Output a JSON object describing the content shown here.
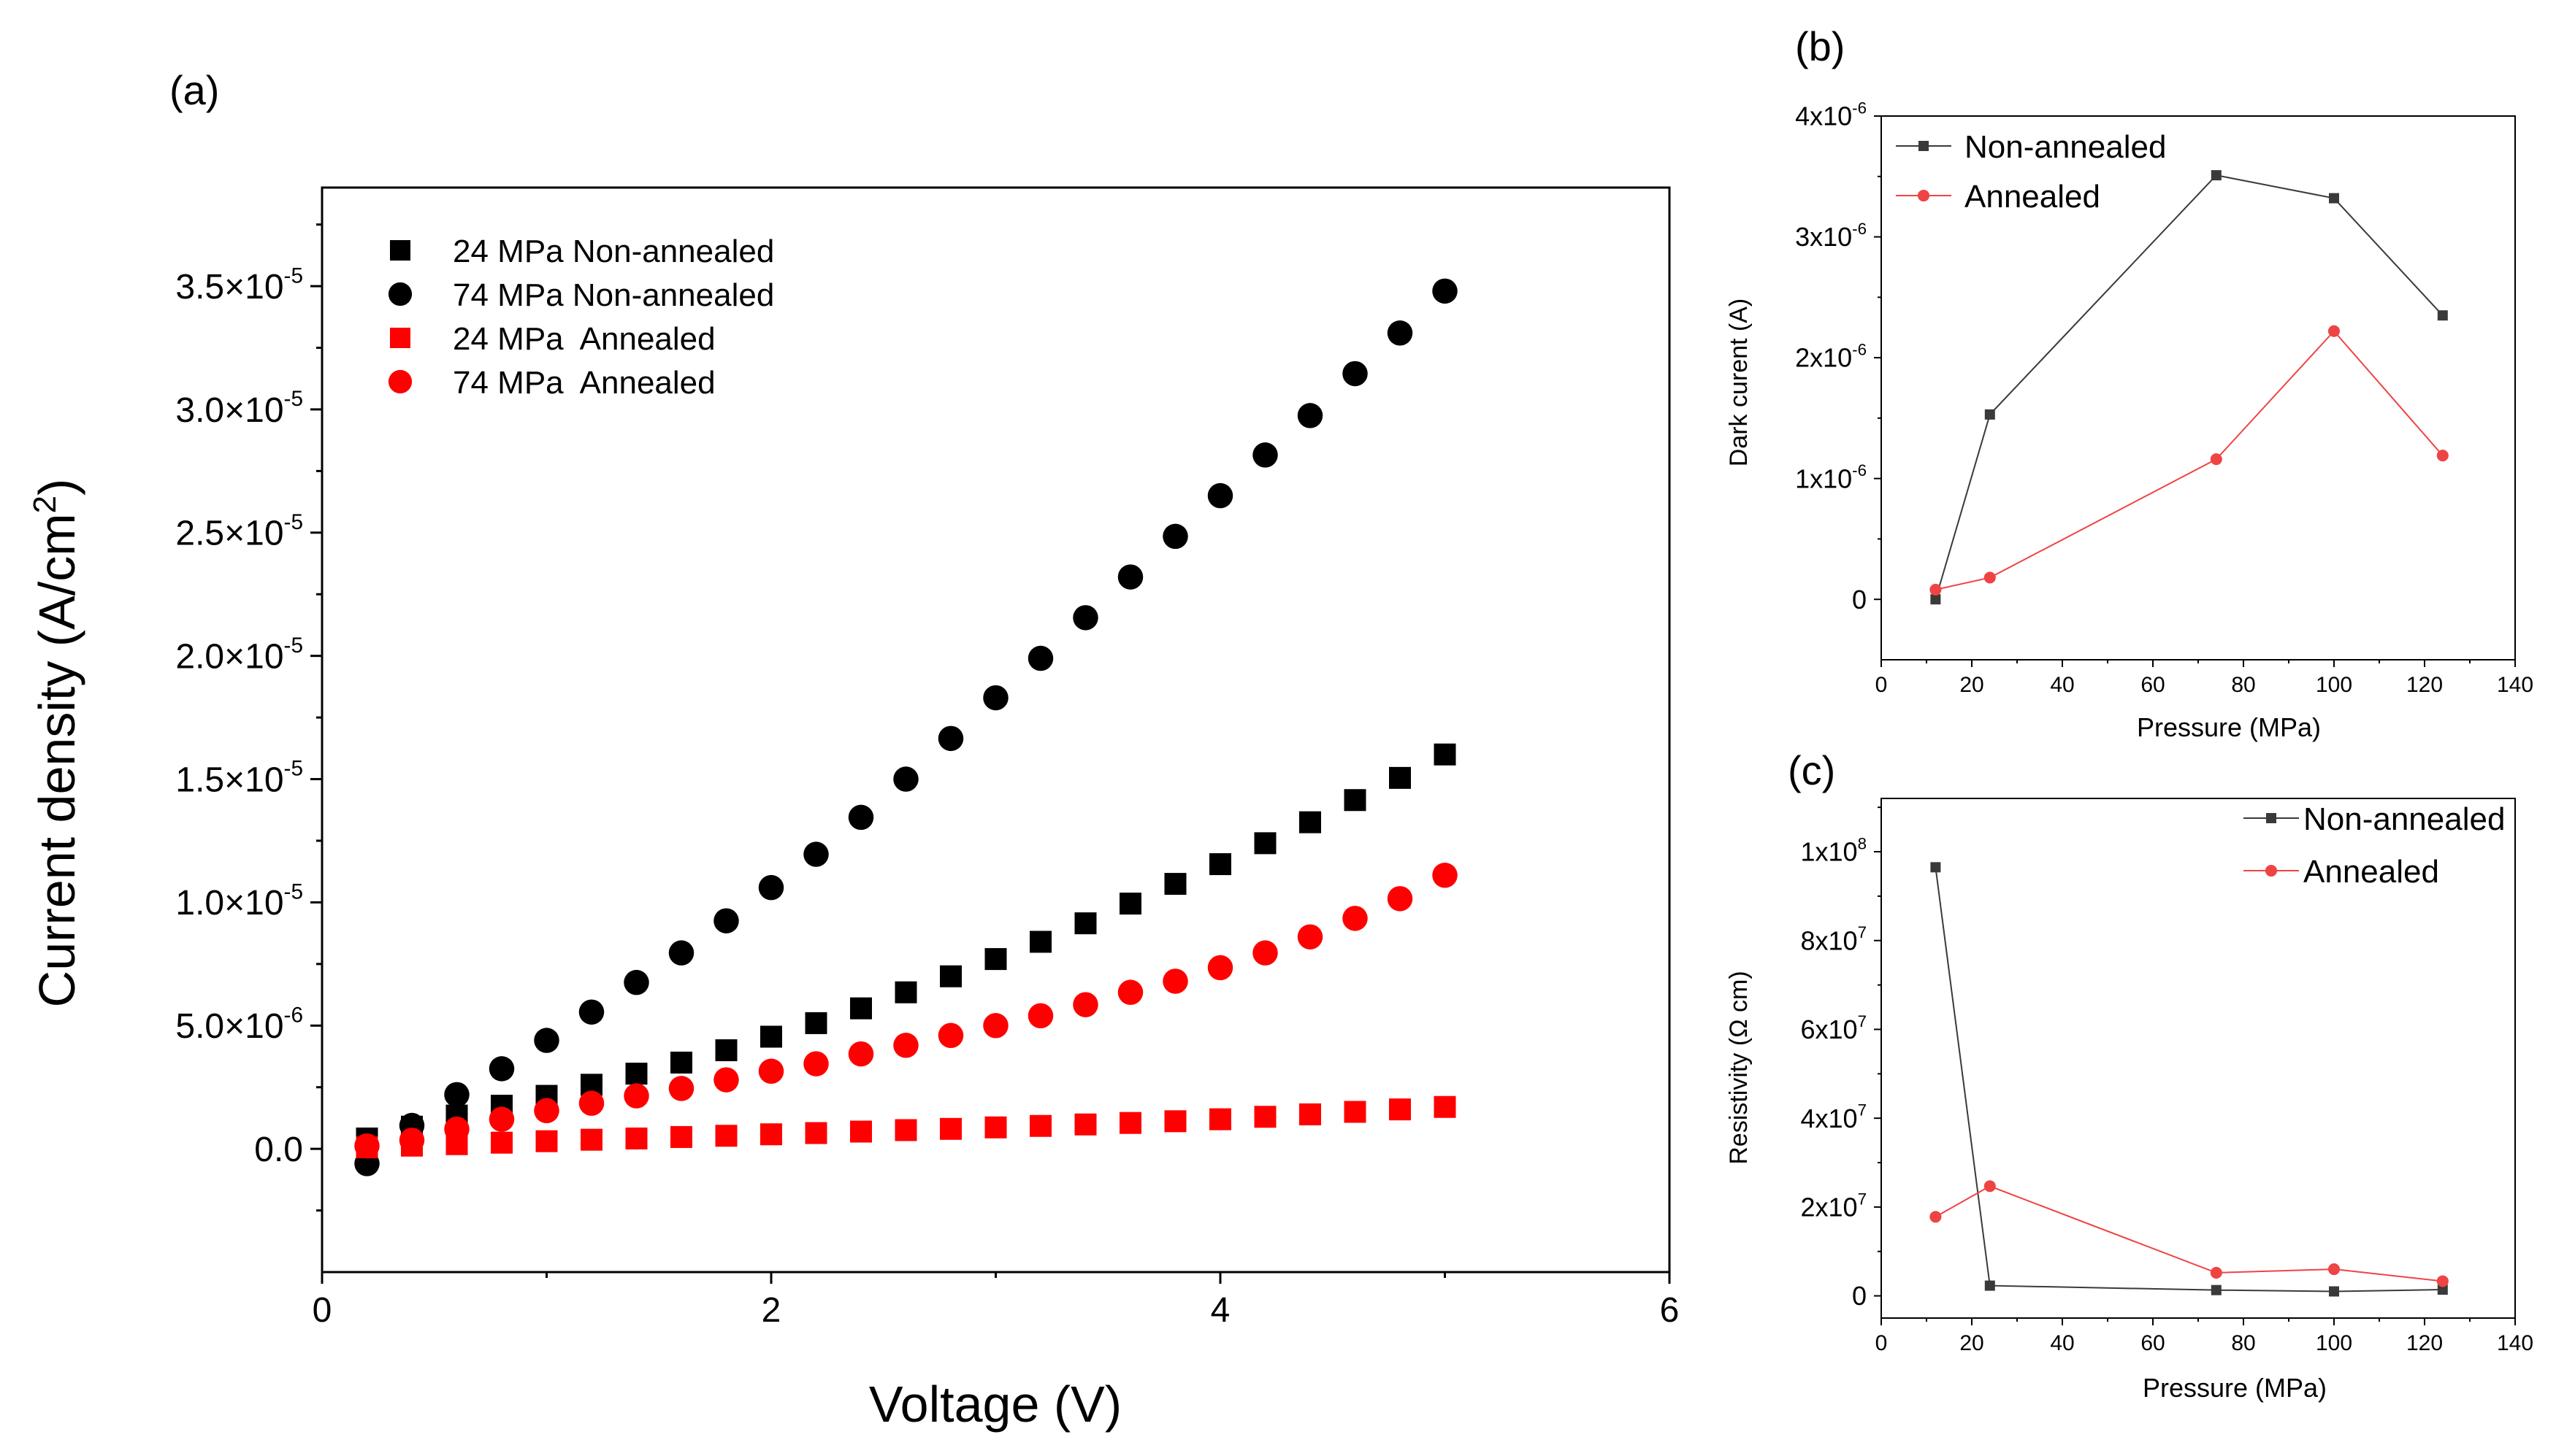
{
  "colors": {
    "black": "#000000",
    "red": "#ff0000",
    "dark_gray": "#3a3a3a",
    "light_red": "#ef4444"
  },
  "chart_data": [
    {
      "panel": "(a)",
      "type": "scatter",
      "xlabel": "Voltage (V)",
      "ylabel_main": "Current density (A/cm",
      "ylabel_sup": "2",
      "ylabel_close": ")",
      "xlim": [
        0,
        6
      ],
      "ylim": [
        -5e-06,
        3.9e-05
      ],
      "x_ticks": [
        {
          "v": 0,
          "label": "0"
        },
        {
          "v": 2,
          "label": "2"
        },
        {
          "v": 4,
          "label": "4"
        },
        {
          "v": 6,
          "label": "6"
        }
      ],
      "y_ticks": [
        {
          "v": 0,
          "mant": "0.0",
          "exp": ""
        },
        {
          "v": 5e-06,
          "mant": "5.0×10",
          "exp": "-6"
        },
        {
          "v": 1e-05,
          "mant": "1.0×10",
          "exp": "-5"
        },
        {
          "v": 1.5e-05,
          "mant": "1.5×10",
          "exp": "-5"
        },
        {
          "v": 2e-05,
          "mant": "2.0×10",
          "exp": "-5"
        },
        {
          "v": 2.5e-05,
          "mant": "2.5×10",
          "exp": "-5"
        },
        {
          "v": 3e-05,
          "mant": "3.0×10",
          "exp": "-5"
        },
        {
          "v": 3.5e-05,
          "mant": "3.5×10",
          "exp": "-5"
        }
      ],
      "legend_position": "top-left",
      "x": [
        0.2,
        0.4,
        0.6,
        0.8,
        1.0,
        1.2,
        1.4,
        1.6,
        1.8,
        2.0,
        2.2,
        2.4,
        2.6,
        2.8,
        3.0,
        3.2,
        3.4,
        3.6,
        3.8,
        4.0,
        4.2,
        4.4,
        4.6,
        4.8,
        5.0
      ],
      "series": [
        {
          "name": "24 MPa Non-annealed",
          "marker": "square",
          "color": "#000000",
          "values": [
            4.2e-07,
            9e-07,
            1.35e-06,
            1.75e-06,
            2.15e-06,
            2.6e-06,
            3.05e-06,
            3.5e-06,
            4e-06,
            4.55e-06,
            5.1e-06,
            5.7e-06,
            6.35e-06,
            7e-06,
            7.7e-06,
            8.4e-06,
            9.15e-06,
            9.95e-06,
            1.075e-05,
            1.155e-05,
            1.24e-05,
            1.325e-05,
            1.415e-05,
            1.505e-05,
            1.6e-05
          ]
        },
        {
          "name": "74 MPa Non-annealed",
          "marker": "circle",
          "color": "#000000",
          "values": [
            -6e-07,
            9.5e-07,
            2.2e-06,
            3.25e-06,
            4.4e-06,
            5.55e-06,
            6.75e-06,
            7.95e-06,
            9.25e-06,
            1.06e-05,
            1.195e-05,
            1.345e-05,
            1.5e-05,
            1.665e-05,
            1.83e-05,
            1.99e-05,
            2.155e-05,
            2.32e-05,
            2.485e-05,
            2.65e-05,
            2.815e-05,
            2.975e-05,
            3.145e-05,
            3.31e-05,
            3.48e-05
          ]
        },
        {
          "name": "24 MPa  Annealed",
          "marker": "square",
          "color": "#ff0000",
          "values": [
            6e-08,
            1.3e-07,
            1.9e-07,
            2.5e-07,
            3.1e-07,
            3.7e-07,
            4.2e-07,
            4.8e-07,
            5.3e-07,
            5.9e-07,
            6.4e-07,
            7e-07,
            7.6e-07,
            8.1e-07,
            8.7e-07,
            9.3e-07,
            9.9e-07,
            1.05e-06,
            1.12e-06,
            1.2e-06,
            1.3e-06,
            1.4e-06,
            1.5e-06,
            1.6e-06,
            1.7e-06
          ]
        },
        {
          "name": "74 MPa  Annealed",
          "marker": "circle",
          "color": "#ff0000",
          "values": [
            1.2e-07,
            3.5e-07,
            8e-07,
            1.2e-06,
            1.55e-06,
            1.85e-06,
            2.15e-06,
            2.45e-06,
            2.8e-06,
            3.15e-06,
            3.45e-06,
            3.85e-06,
            4.2e-06,
            4.6e-06,
            5e-06,
            5.4e-06,
            5.85e-06,
            6.35e-06,
            6.8e-06,
            7.35e-06,
            7.95e-06,
            8.6e-06,
            9.35e-06,
            1.015e-05,
            1.11e-05
          ]
        }
      ]
    },
    {
      "panel": "(b)",
      "type": "line",
      "xlabel": "Pressure (MPa)",
      "ylabel": "Dark curent (A)",
      "xlim": [
        0,
        140
      ],
      "ylim": [
        -5e-07,
        4e-06
      ],
      "x_ticks": [
        {
          "v": 0,
          "label": "0"
        },
        {
          "v": 20,
          "label": "20"
        },
        {
          "v": 40,
          "label": "40"
        },
        {
          "v": 60,
          "label": "60"
        },
        {
          "v": 80,
          "label": "80"
        },
        {
          "v": 100,
          "label": "100"
        },
        {
          "v": 120,
          "label": "120"
        },
        {
          "v": 140,
          "label": "140"
        }
      ],
      "y_ticks": [
        {
          "v": 0,
          "mant": "0",
          "exp": ""
        },
        {
          "v": 1e-06,
          "mant": "1x10",
          "exp": "-6"
        },
        {
          "v": 2e-06,
          "mant": "2x10",
          "exp": "-6"
        },
        {
          "v": 3e-06,
          "mant": "3x10",
          "exp": "-6"
        },
        {
          "v": 4e-06,
          "mant": "4x10",
          "exp": "-6"
        }
      ],
      "legend_position": "top-left",
      "x": [
        12,
        24,
        74,
        100,
        124
      ],
      "series": [
        {
          "name": "Non-annealed",
          "marker": "square",
          "color": "#3a3a3a",
          "values": [
            0,
            1.53e-06,
            3.51e-06,
            3.32e-06,
            2.35e-06
          ]
        },
        {
          "name": "Annealed",
          "marker": "circle",
          "color": "#ef4444",
          "values": [
            8e-08,
            1.8e-07,
            1.16e-06,
            2.22e-06,
            1.19e-06
          ]
        }
      ]
    },
    {
      "panel": "(c)",
      "type": "line",
      "xlabel": "Pressure (MPa)",
      "ylabel": "Resistivity (Ω cm)",
      "xlim": [
        0,
        140
      ],
      "ylim": [
        -5000000.0,
        112000000.0
      ],
      "x_ticks": [
        {
          "v": 0,
          "label": "0"
        },
        {
          "v": 20,
          "label": "20"
        },
        {
          "v": 40,
          "label": "40"
        },
        {
          "v": 60,
          "label": "60"
        },
        {
          "v": 80,
          "label": "80"
        },
        {
          "v": 100,
          "label": "100"
        },
        {
          "v": 120,
          "label": "120"
        },
        {
          "v": 140,
          "label": "140"
        }
      ],
      "y_ticks": [
        {
          "v": 0,
          "mant": "0",
          "exp": ""
        },
        {
          "v": 20000000.0,
          "mant": "2x10",
          "exp": "7"
        },
        {
          "v": 40000000.0,
          "mant": "4x10",
          "exp": "7"
        },
        {
          "v": 60000000.0,
          "mant": "6x10",
          "exp": "7"
        },
        {
          "v": 80000000.0,
          "mant": "8x10",
          "exp": "7"
        },
        {
          "v": 100000000.0,
          "mant": "1x10",
          "exp": "8"
        }
      ],
      "legend_position": "top-right",
      "x": [
        12,
        24,
        74,
        100,
        124
      ],
      "series": [
        {
          "name": "Non-annealed",
          "marker": "square",
          "color": "#3a3a3a",
          "values": [
            96500000.0,
            2300000.0,
            1300000.0,
            1000000.0,
            1400000.0
          ]
        },
        {
          "name": "Annealed",
          "marker": "circle",
          "color": "#ef4444",
          "values": [
            17800000.0,
            24700000.0,
            5200000.0,
            6000000.0,
            3300000.0
          ]
        }
      ]
    }
  ]
}
